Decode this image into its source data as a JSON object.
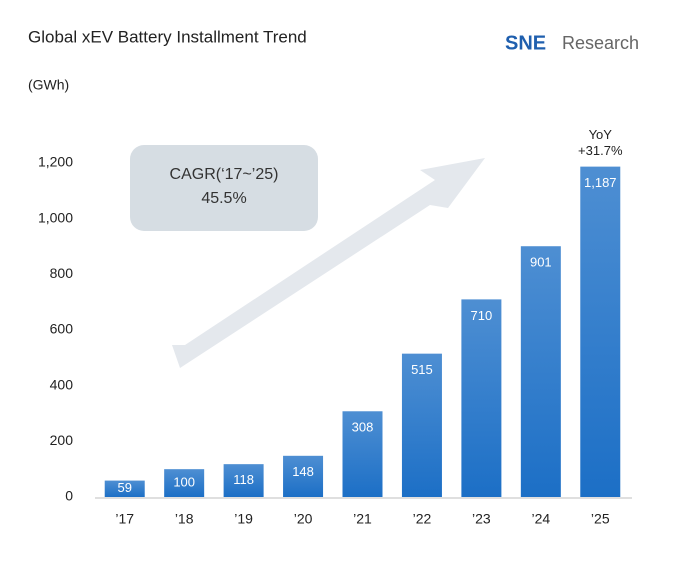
{
  "logo": {
    "brand": "SNE",
    "name": "Research"
  },
  "chart_data": {
    "type": "bar",
    "title": "Global xEV Battery Installment Trend",
    "y_label": "(GWh)",
    "categories": [
      "’17",
      "’18",
      "’19",
      "’20",
      "’21",
      "’22",
      "’23",
      "’24",
      "’25"
    ],
    "values": [
      59,
      100,
      118,
      148,
      308,
      515,
      710,
      901,
      1187
    ],
    "value_labels": [
      "59",
      "100",
      "118",
      "148",
      "308",
      "515",
      "710",
      "901",
      "1,187"
    ],
    "color": "#1c6fc6",
    "ylim": [
      0,
      1200
    ],
    "yticks": [
      0,
      200,
      400,
      600,
      800,
      {
        "value": 1000,
        "label": "1,000"
      },
      {
        "value": 1200,
        "label": "1,200"
      }
    ],
    "grid": false,
    "annotations": {
      "yoy_title": "YoY",
      "yoy_value": "+31.7%",
      "cagr_title": "CAGR(‘17~’25)",
      "cagr_value": "45.5%"
    }
  }
}
